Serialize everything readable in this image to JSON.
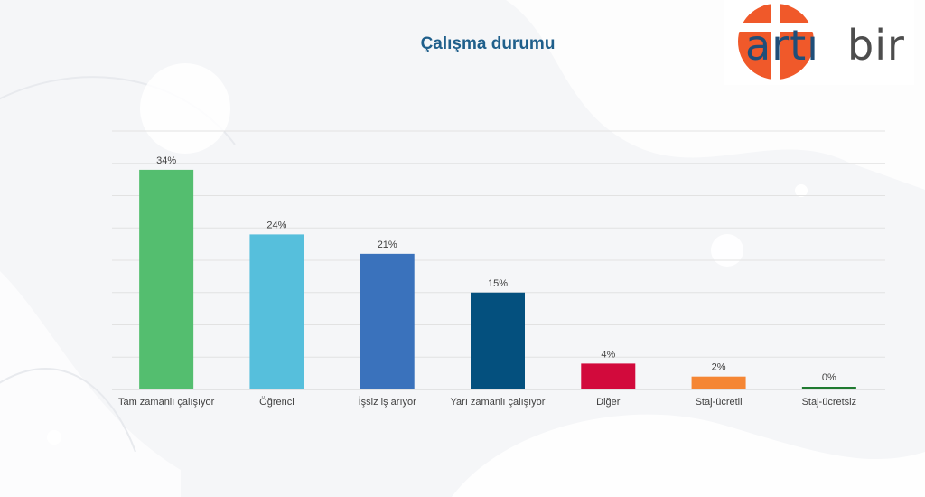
{
  "logo": {
    "word_left": "artı",
    "word_right": "bir",
    "accent_color": "#f0592a",
    "text_color": "#1f4e79",
    "text_color_right": "#4d4d4d"
  },
  "chart_data": {
    "type": "bar",
    "title": "Çalışma durumu",
    "xlabel": "",
    "ylabel": "",
    "ylim": [
      0,
      40
    ],
    "grid": true,
    "categories": [
      "Tam zamanlı çalışıyor",
      "Öğrenci",
      "İşsiz iş arıyor",
      "Yarı zamanlı çalışıyor",
      "Diğer",
      "Staj-ücretli",
      "Staj-ücretsiz"
    ],
    "values": [
      34,
      24,
      21,
      15,
      4,
      2,
      0
    ],
    "data_labels": [
      "34%",
      "24%",
      "21%",
      "15%",
      "4%",
      "2%",
      "0%"
    ],
    "colors": [
      "#54be6f",
      "#56bfdc",
      "#3a72bc",
      "#04507e",
      "#d20a3c",
      "#f58634",
      "#1f7a30"
    ]
  }
}
